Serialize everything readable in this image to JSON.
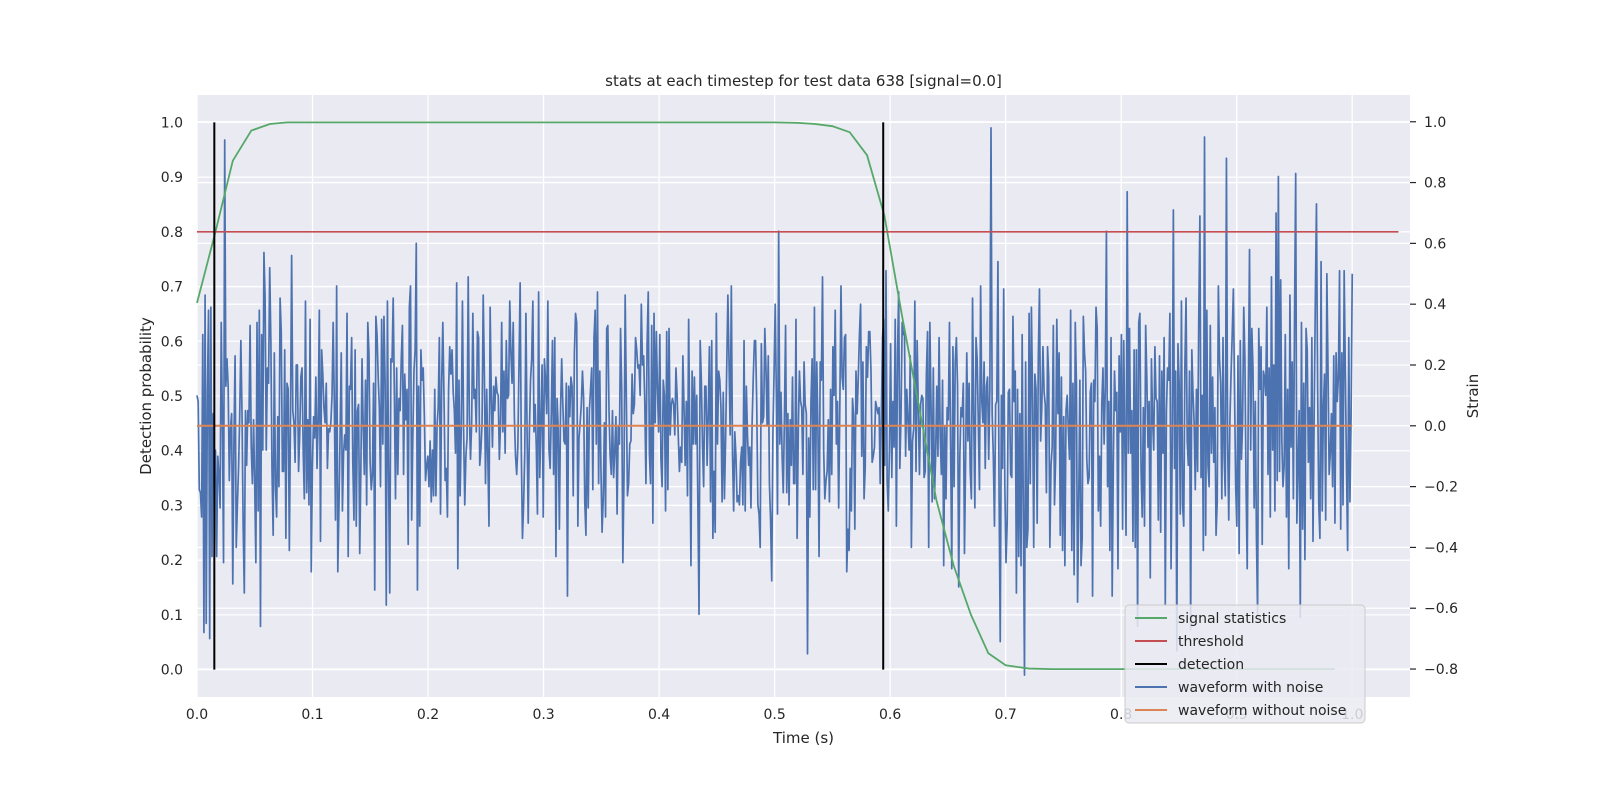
{
  "chart_data": {
    "type": "line",
    "title": "stats at each timestep for test data 638 [signal=0.0]",
    "xlabel": "Time (s)",
    "ylabel": "Detection probability",
    "y2label": "Strain",
    "xlim": [
      0.0,
      1.05
    ],
    "ylim": [
      -0.05,
      1.05
    ],
    "y2lim": [
      -0.892,
      1.088
    ],
    "x_ticks": [
      0.0,
      0.1,
      0.2,
      0.3,
      0.4,
      0.5,
      0.6,
      0.7,
      0.8,
      0.9,
      1.0
    ],
    "y_ticks": [
      0.0,
      0.1,
      0.2,
      0.3,
      0.4,
      0.5,
      0.6,
      0.7,
      0.8,
      0.9,
      1.0
    ],
    "y2_ticks": [
      -0.8,
      -0.6,
      -0.4,
      -0.2,
      0.0,
      0.2,
      0.4,
      0.6,
      0.8,
      1.0
    ],
    "x_tick_labels": [
      "0.0",
      "0.1",
      "0.2",
      "0.3",
      "0.4",
      "0.5",
      "0.6",
      "0.7",
      "0.8",
      "0.9",
      "1.0"
    ],
    "y_tick_labels": [
      "0.0",
      "0.1",
      "0.2",
      "0.3",
      "0.4",
      "0.5",
      "0.6",
      "0.7",
      "0.8",
      "0.9",
      "1.0"
    ],
    "y2_tick_labels": [
      "−0.8",
      "−0.6",
      "−0.4",
      "−0.2",
      "0.0",
      "0.2",
      "0.4",
      "0.6",
      "0.8",
      "1.0"
    ],
    "grid": true,
    "legend_position": "lower-right",
    "colors": {
      "background": "#eaeaf2",
      "grid": "#ffffff",
      "signal_statistics": "#55a868",
      "threshold": "#c44e52",
      "detection": "#000000",
      "waveform_with_noise": "#4c72b0",
      "waveform_without_noise": "#dd8452"
    },
    "series": [
      {
        "name": "signal statistics",
        "axis": "left",
        "x": [
          0.0,
          0.016,
          0.031,
          0.047,
          0.063,
          0.078,
          0.094,
          0.5,
          0.52,
          0.535,
          0.55,
          0.565,
          0.58,
          0.595,
          0.61,
          0.625,
          0.64,
          0.655,
          0.67,
          0.685,
          0.7,
          0.72,
          0.74,
          0.9,
          0.985
        ],
        "values": [
          0.67,
          0.8,
          0.93,
          0.985,
          0.997,
          1.0,
          1.0,
          1.0,
          0.999,
          0.997,
          0.993,
          0.982,
          0.94,
          0.83,
          0.65,
          0.48,
          0.31,
          0.19,
          0.1,
          0.03,
          0.008,
          0.002,
          0.001,
          0.001,
          0.001
        ]
      },
      {
        "name": "threshold",
        "axis": "left",
        "x": [
          0.0,
          1.04
        ],
        "values": [
          0.8,
          0.8
        ]
      },
      {
        "name": "detection",
        "axis": "left",
        "vlines": [
          {
            "x": 0.015,
            "ymin": 0.0,
            "ymax": 1.0
          },
          {
            "x": 0.594,
            "ymin": 0.0,
            "ymax": 1.0
          }
        ]
      },
      {
        "name": "waveform with noise",
        "axis": "right",
        "x_start": 0.0,
        "x_end": 1.0,
        "values": [
          0.1,
          0.08,
          -0.21,
          -0.22,
          -0.3,
          0.3,
          -0.68,
          0.43,
          -0.65,
          0.11,
          0.38,
          -0.7,
          0.39,
          -0.43,
          0.04,
          -0.15,
          -0.08,
          -0.43,
          -0.1,
          -0.16,
          -0.27,
          0.34,
          0.02,
          -0.45,
          0.94,
          0.13,
          0.22,
          0.13,
          -0.18,
          -0.01,
          0.04,
          -0.52,
          -0.05,
          0.23,
          -0.4,
          -0.26,
          -0.14,
          0.03,
          0.28,
          0.04,
          -0.33,
          -0.55,
          0.05,
          -0.13,
          0.05,
          0.01,
          0.33,
          -0.07,
          -0.19,
          0.02,
          -0.19,
          -0.45,
          0.34,
          -0.28,
          0.38,
          -0.66,
          0.3,
          -0.08,
          0.57,
          0.42,
          -0.08,
          0.19,
          0.14,
          0.52,
          0.28,
          -0.15,
          -0.36,
          0.24,
          -0.2,
          -0.3,
          0.03,
          -0.2,
          0.42,
          0.31,
          -0.15,
          -0.15,
          0.25,
          -0.37,
          0.14,
          0.12,
          -0.41,
          0.02,
          0.56,
          0.05,
          0.01,
          -0.12,
          0.2,
          0.2,
          -0.15,
          -0.03,
          0.16,
          0.19,
          -0.08,
          -0.24,
          0.41,
          -0.22,
          0.02,
          -0.26,
          0.35,
          -0.48,
          -0.13,
          0.03,
          -0.04,
          0.16,
          -0.14,
          0.02,
          0.38,
          -0.38,
          0.25,
          0.17,
          0.06,
          0.01,
          0.14,
          -0.14,
          -0.01,
          -0.02,
          0.01,
          0.1,
          0.34,
          0.07,
          -0.31,
          0.46,
          -0.48,
          -0.27,
          -0.02,
          0.24,
          -0.28,
          -0.09,
          -0.03,
          -0.08,
          0.37,
          -0.43,
          0.13,
          0.12,
          0.29,
          -0.12,
          -0.31,
          0.25,
          -0.33,
          0.05,
          0.07,
          -0.42,
          -0.14,
          0.22,
          0.0,
          -0.16,
          0.15,
          -0.26,
          0.34,
          0.24,
          -0.12,
          -0.21,
          -0.16,
          0.14,
          -0.54,
          0.36,
          0.3,
          0.16,
          0.06,
          -0.2,
          0.35,
          -0.06,
          0.36,
          0.14,
          -0.59,
          0.41,
          -0.16,
          -0.55,
          0.22,
          0.21,
          0.42,
          0.11,
          -0.24,
          0.19,
          -0.16,
          0.09,
          0.05,
          0.22,
          0.33,
          -0.16,
          0.17,
          0.02,
          0.12,
          -0.39,
          0.39,
          0.46,
          -0.31,
          -0.04,
          0.18,
          0.25,
          0.6,
          -0.54,
          0.13,
          -0.33,
          0.25,
          0.15,
          0.19,
          0.03,
          -0.18,
          -0.13,
          -0.1,
          -0.2,
          -0.05,
          -0.25,
          -0.08,
          -0.23,
          0.12,
          -0.23,
          0.0,
          0.06,
          0.29,
          -0.29,
          0.14,
          0.34,
          0.1,
          -0.18,
          -0.14,
          -0.3,
          0.12,
          0.26,
          0.17,
          0.25,
          0.11,
          0.05,
          -0.09,
          0.47,
          -0.47,
          0.15,
          -0.23,
          0.0,
          0.41,
          -0.01,
          -0.26,
          -0.1,
          -0.04,
          0.49,
          0.03,
          -0.11,
          0.01,
          0.37,
          0.09,
          0.12,
          -0.02,
          0.31,
          0.29,
          -0.13,
          -0.08,
          0.01,
          0.43,
          0.17,
          -0.19,
          0.12,
          -0.1,
          -0.33,
          0.39,
          0.1,
          -0.07,
          0.13,
          0.05,
          0.16,
          0.11,
          0.1,
          -0.11,
          0.01,
          0.34,
          -0.02,
          0.18,
          -0.09,
          0.28,
          0.09,
          0.1,
          0.41,
          0.24,
          0.14,
          0.34,
          0.03,
          -0.1,
          -0.16,
          -0.07,
          0.2,
          0.47,
          -0.08,
          -0.37,
          -0.26,
          -0.09,
          0.37,
          -0.02,
          -0.32,
          -0.02,
          0.15,
          0.22,
          0.41,
          -0.02,
          0.07,
          -0.07,
          -0.29,
          0.44,
          -0.17,
          0.01,
          0.2,
          -0.3,
          0.22,
          0.15,
          0.04,
          0.41,
          -0.08,
          -0.14,
          0.04,
          0.28,
          -0.16,
          0.29,
          -0.43,
          0.09,
          -0.01,
          -0.34,
          0.05,
          0.22,
          0.07,
          -0.05,
          -0.06,
          0.14,
          -0.56,
          0.13,
          0.03,
          0.16,
          0.13,
          -0.23,
          0.24,
          0.37,
          0.34,
          -0.33,
          -0.04,
          0.01,
          0.07,
          0.18,
          0.09,
          -0.25,
          -0.36,
          0.06,
          -0.27,
          0.05,
          0.12,
          0.19,
          -0.21,
          0.29,
          0.38,
          -0.06,
          0.44,
          -0.19,
          0.18,
          -0.14,
          -0.35,
          -0.24,
          0.01,
          -0.3,
          0.32,
          0.33,
          0.05,
          -0.1,
          -0.16,
          0.05,
          -0.17,
          -0.08,
          0.03,
          -0.29,
          0.0,
          -0.06,
          0.32,
          0.12,
          -0.45,
          -0.16,
          0.43,
          0.1,
          -0.23,
          -0.19,
          -0.06,
          -0.05,
          0.17,
          0.04,
          0.07,
          0.29,
          0.25,
          0.19,
          0.2,
          0.1,
          0.4,
          0.2,
          0.23,
          0.08,
          -0.19,
          0.27,
          0.44,
          -0.09,
          -0.19,
          0.33,
          -0.32,
          0.37,
          0.01,
          0.31,
          0.12,
          -0.02,
          0.3,
          -0.11,
          -0.2,
          0.15,
          0.1,
          -0.28,
          0.31,
          -0.21,
          0.32,
          -0.03,
          0.07,
          0.09,
          0.07,
          -0.03,
          0.19,
          0.1,
          -0.03,
          -0.15,
          -0.07,
          -0.12,
          0.23,
          0.06,
          -0.13,
          0.08,
          -0.23,
          0.35,
          -0.04,
          -0.46,
          0.18,
          -0.06,
          0.16,
          -0.06,
          0.1,
          -0.26,
          -0.62,
          0.28,
          0.15,
          -0.06,
          -0.2,
          0.13,
          0.13,
          -0.13,
          0.04,
          0.26,
          -0.25,
          0.28,
          -0.37,
          -0.15,
          -0.35,
          0.37,
          -0.06,
          0.18,
          0.15,
          0.06,
          -0.25,
          0.11,
          -0.24,
          -0.05,
          0.19,
          0.43,
          0.21,
          -0.03,
          0.46,
          -0.09,
          -0.28,
          -0.02,
          -0.1,
          -0.25,
          -0.23,
          -0.26,
          -0.12,
          -0.07,
          -0.26,
          0.28,
          -0.28,
          0.13,
          -0.03,
          -0.13,
          -0.07,
          -0.27,
          0.01,
          0.16,
          0.28,
          0.28,
          0.07,
          -0.26,
          -0.29,
          -0.4,
          0.27,
          0.01,
          0.03,
          0.32,
          0.19,
          0.0,
          0.23,
          -0.19,
          -0.31,
          -0.51,
          -0.03,
          0.17,
          0.4,
          0.1,
          -0.29,
          0.64,
          -0.06,
          0.11,
          -0.1,
          -0.22,
          0.03,
          0.33,
          -0.22,
          0.04,
          -0.26,
          0.02,
          -0.13,
          0.16,
          -0.19,
          -0.19,
          0.35,
          -0.37,
          -0.02,
          0.18,
          0.08,
          0.06,
          -0.16,
          0.21,
          0.07,
          0.04,
          -0.75,
          -0.04,
          -0.3,
          0.08,
          0.22,
          -0.21,
          0.39,
          -0.21,
          0.21,
          0.0,
          -0.43,
          0.21,
          0.15,
          0.49,
          -0.08,
          -0.24,
          -0.18,
          -0.15,
          0.02,
          -0.25,
          0.12,
          -0.16,
          0.26,
          0.1,
          0.38,
          -0.06,
          0.08,
          -0.27,
          0.06,
          0.46,
          0.16,
          0.12,
          0.29,
          0.3,
          -0.48,
          -0.34,
          -0.41,
          -0.14,
          -0.28,
          0.09,
          0.03,
          -0.34,
          0.18,
          0.04,
          0.16,
          0.3,
          0.4,
          -0.1,
          0.21,
          -0.24,
          -0.14,
          0.26,
          0.16,
          0.31,
          0.31,
          0.18,
          -0.12,
          -0.1,
          -0.07,
          0.08,
          0.06,
          0.04,
          0.06,
          -0.19,
          0.04,
          0.29,
          0.35,
          -0.13,
          0.51,
          -0.18,
          -0.28,
          -0.08,
          0.27,
          -0.17,
          0.08,
          -0.07,
          0.35,
          -0.33,
          0.24,
          0.44,
          -0.14,
          0.03,
          0.34,
          0.3,
          0.31,
          -0.1,
          0.12,
          0.02,
          -0.08,
          0.23,
          -0.4,
          -0.05,
          -0.01,
          0.41,
          -0.15,
          0.28,
          0.05,
          -0.16,
          0.07,
          0.1,
          0.09,
          -0.17,
          -0.15,
          0.17,
          0.31,
          -0.4,
          0.34,
          0.08,
          -0.25,
          0.19,
          -0.24,
          -0.1,
          0.13,
          -0.1,
          0.29,
          -0.04,
          -0.16,
          0.15,
          -0.46,
          0.0,
          -0.24,
          0.06,
          0.02,
          0.34,
          -0.07,
          -0.47,
          0.26,
          -0.2,
          0.21,
          0.29,
          0.13,
          -0.53,
          -0.1,
          0.06,
          0.03,
          0.14,
          -0.42,
          -0.11,
          0.24,
          -0.05,
          0.14,
          -0.15,
          -0.24,
          0.42,
          0.04,
          -0.27,
          0.29,
          0.22,
          0.01,
          -0.21,
          0.46,
          0.08,
          0.01,
          0.21,
          -0.14,
          0.13,
          0.16,
          -0.11,
          0.12,
          0.98,
          0.04,
          -0.1,
          -0.33,
          0.07,
          0.08,
          0.54,
          -0.23,
          -0.71,
          0.1,
          -0.14,
          0.45,
          -0.2,
          -0.45,
          -0.32,
          0.11,
          0.12,
          -0.16,
          -0.17,
          0.36,
          0.08,
          0.18,
          -0.55,
          0.12,
          -0.43,
          0.04,
          -0.46,
          0.3,
          -0.28,
          -0.82,
          0.21,
          -0.4,
          -0.34,
          0.37,
          -0.19,
          0.39,
          0.1,
          -0.4,
          0.17,
          0.12,
          -0.32,
          0.23,
          0.45,
          -0.05,
          0.06,
          0.26,
          0.11,
          0.07,
          -0.22,
          0.26,
          0.16,
          -0.4,
          -0.13,
          -0.07,
          0.33,
          -0.26,
          -0.11,
          0.35,
          0.04,
          0.24,
          -0.36,
          0.16,
          -0.41,
          0.03,
          -0.46,
          0.05,
          0.1,
          -0.01,
          -0.11,
          0.38,
          -0.41,
          0.14,
          -0.49,
          0.34,
          0.14,
          -0.58,
          -0.26,
          0.15,
          -0.46,
          -0.37,
          0.36,
          0.24,
          0.18,
          -0.11,
          -0.19,
          -0.17,
          0.11,
          0.14,
          -0.56,
          0.15,
          0.08,
          0.39,
          0.32,
          -0.28,
          -0.1,
          -0.33,
          0.07,
          0.19,
          -0.06,
          0.12,
          0.64,
          -0.2,
          0.08,
          -0.41,
          0.29,
          -0.56,
          -0.12,
          0.18,
          0.05,
          0.11,
          -0.47,
          0.23,
          -0.02,
          0.3,
          -0.34,
          0.28,
          -0.07,
          -0.36,
          0.77,
          -0.09,
          0.32,
          -0.09,
          0.05,
          -0.38,
          0.25,
          -0.4,
          0.25,
          -0.66,
          0.34,
          0.37,
          -0.14,
          -0.3,
          0.06,
          -0.33,
          0.33,
          0.16,
          -0.07,
          0.08,
          -0.5,
          0.22,
          0.02,
          -0.08,
          0.26,
          0.09,
          0.08,
          -0.31,
          0.23,
          -0.35,
          0.18,
          -0.09,
          0.29,
          -0.59,
          0.05,
          0.19,
          0.15,
          0.37,
          -0.47,
          -0.07,
          0.71,
          -0.14,
          0.18,
          -0.74,
          0.27,
          0.14,
          -0.29,
          0.41,
          -0.26,
          -0.33,
          0.2,
          0.42,
          -0.05,
          -0.13,
          0.18,
          -0.67,
          0.25,
          0.11,
          0.01,
          -0.21,
          0.12,
          -0.15,
          0.35,
          0.69,
          -0.17,
          0.1,
          -0.41,
          0.95,
          -0.36,
          0.38,
          -0.13,
          -0.2,
          0.33,
          -0.09,
          0.16,
          -0.12,
          0.06,
          -0.36,
          -0.25,
          0.46,
          0.22,
          0.14,
          -0.24,
          0.29,
          -0.1,
          -0.23,
          0.88,
          -0.05,
          -0.31,
          0.02,
          0.17,
          0.3,
          0.45,
          0.12,
          -0.2,
          -0.33,
          0.23,
          -0.42,
          0.28,
          -0.11,
          0.01,
          0.39,
          0.22,
          -0.2,
          -0.47,
          0.13,
          0.58,
          -0.08,
          0.32,
          0.19,
          -0.27,
          0.08,
          -0.37,
          -0.62,
          0.32,
          0.12,
          0.26,
          -0.39,
          0.18,
          0.16,
          0.1,
          0.39,
          -0.16,
          0.19,
          -0.3,
          0.49,
          -0.08,
          0.2,
          -0.28,
          0.7,
          -0.18,
          0.82,
          -0.15,
          0.48,
          -0.05,
          -0.2,
          -0.13,
          0.3,
          -0.3,
          0.12,
          -0.47,
          0.43,
          -0.07,
          0.21,
          -0.24,
          0.36,
          0.83,
          -0.32,
          -0.13,
          0.05,
          -0.63,
          0.34,
          -0.34,
          0.14,
          -0.44,
          0.32,
          0.25,
          -0.12,
          0.06,
          -0.24,
          0.29,
          -0.38,
          0.03,
          0.41,
          0.73,
          0.13,
          -0.26,
          -0.37,
          0.54,
          -0.28,
          0.06,
          0.17,
          -0.31,
          0.5,
          0.19,
          -0.16,
          -0.09,
          0.04,
          -0.2,
          0.23,
          -0.32,
          0.24,
          0.08,
          0.16,
          0.51,
          -0.34,
          0.24,
          -0.26,
          0.51,
          0.18,
          -0.13,
          -0.41,
          0.29,
          -0.25,
          0.03,
          0.5
        ]
      },
      {
        "name": "waveform without noise",
        "axis": "right",
        "x": [
          0.0,
          1.0
        ],
        "values": [
          0.0,
          0.0
        ]
      }
    ],
    "legend": [
      "signal statistics",
      "threshold",
      "detection",
      "waveform with noise",
      "waveform without noise"
    ]
  }
}
